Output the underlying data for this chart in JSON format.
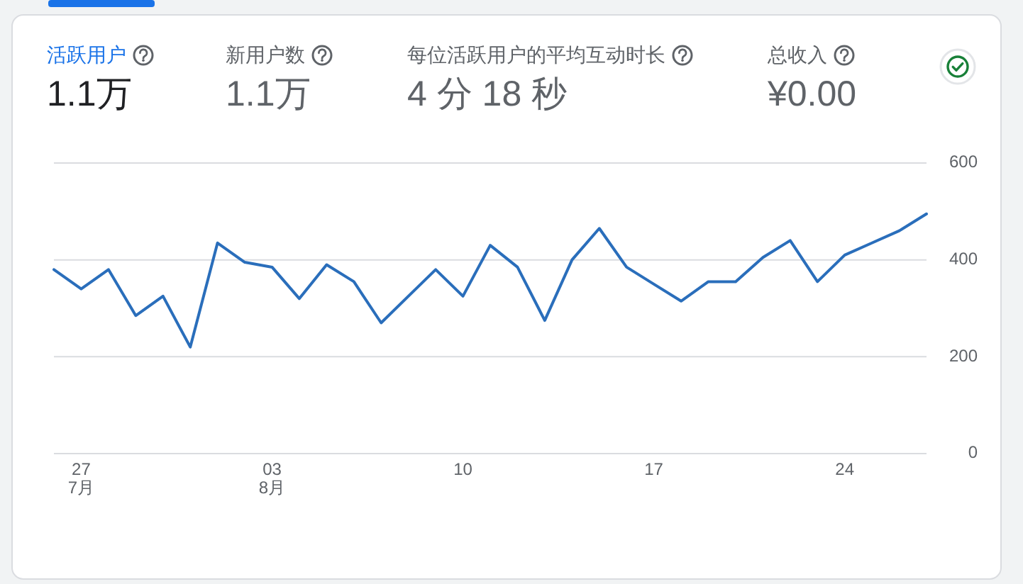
{
  "chart_data": [
    {
      "type": "other",
      "annotations": [
        "活跃用户",
        "1.1万",
        "新用户数",
        "1.1万",
        "每位活跃用户的平均互动时长",
        "4 分 18 秒",
        "总收入",
        "¥0.00"
      ]
    },
    {
      "type": "line",
      "color": "#2a6ebb",
      "x": [
        "--07-26",
        "--07-27",
        "--07-28",
        "--07-29",
        "--07-30",
        "--07-31",
        "--08-01",
        "--08-02",
        "--08-03",
        "--08-04",
        "--08-05",
        "--08-06",
        "--08-07",
        "--08-08",
        "--08-09",
        "--08-10",
        "--08-11",
        "--08-12",
        "--08-13",
        "--08-14",
        "--08-15",
        "--08-16",
        "--08-17",
        "--08-18",
        "--08-19",
        "--08-20",
        "--08-21",
        "--08-22",
        "--08-23",
        "--08-24",
        "--08-25",
        "--08-26",
        "--08-27"
      ],
      "values": [
        380,
        340,
        380,
        285,
        325,
        220,
        435,
        395,
        385,
        320,
        390,
        355,
        270,
        325,
        380,
        325,
        430,
        385,
        275,
        400,
        465,
        385,
        350,
        315,
        355,
        355,
        405,
        440,
        355,
        410,
        435,
        460,
        495
      ],
      "xlim": [
        "--07-26",
        "--08-27"
      ],
      "xticks": [
        {
          "value": "--07-27",
          "label": "27\n7月"
        },
        {
          "value": "--08-03",
          "label": "03\n8月"
        },
        {
          "value": "--08-10",
          "label": "10"
        },
        {
          "value": "--08-17",
          "label": "17"
        },
        {
          "value": "--08-24",
          "label": "24"
        }
      ],
      "ylim": [
        0,
        600
      ],
      "yticks": [
        0,
        200,
        400,
        600
      ],
      "grid": "y"
    }
  ]
}
